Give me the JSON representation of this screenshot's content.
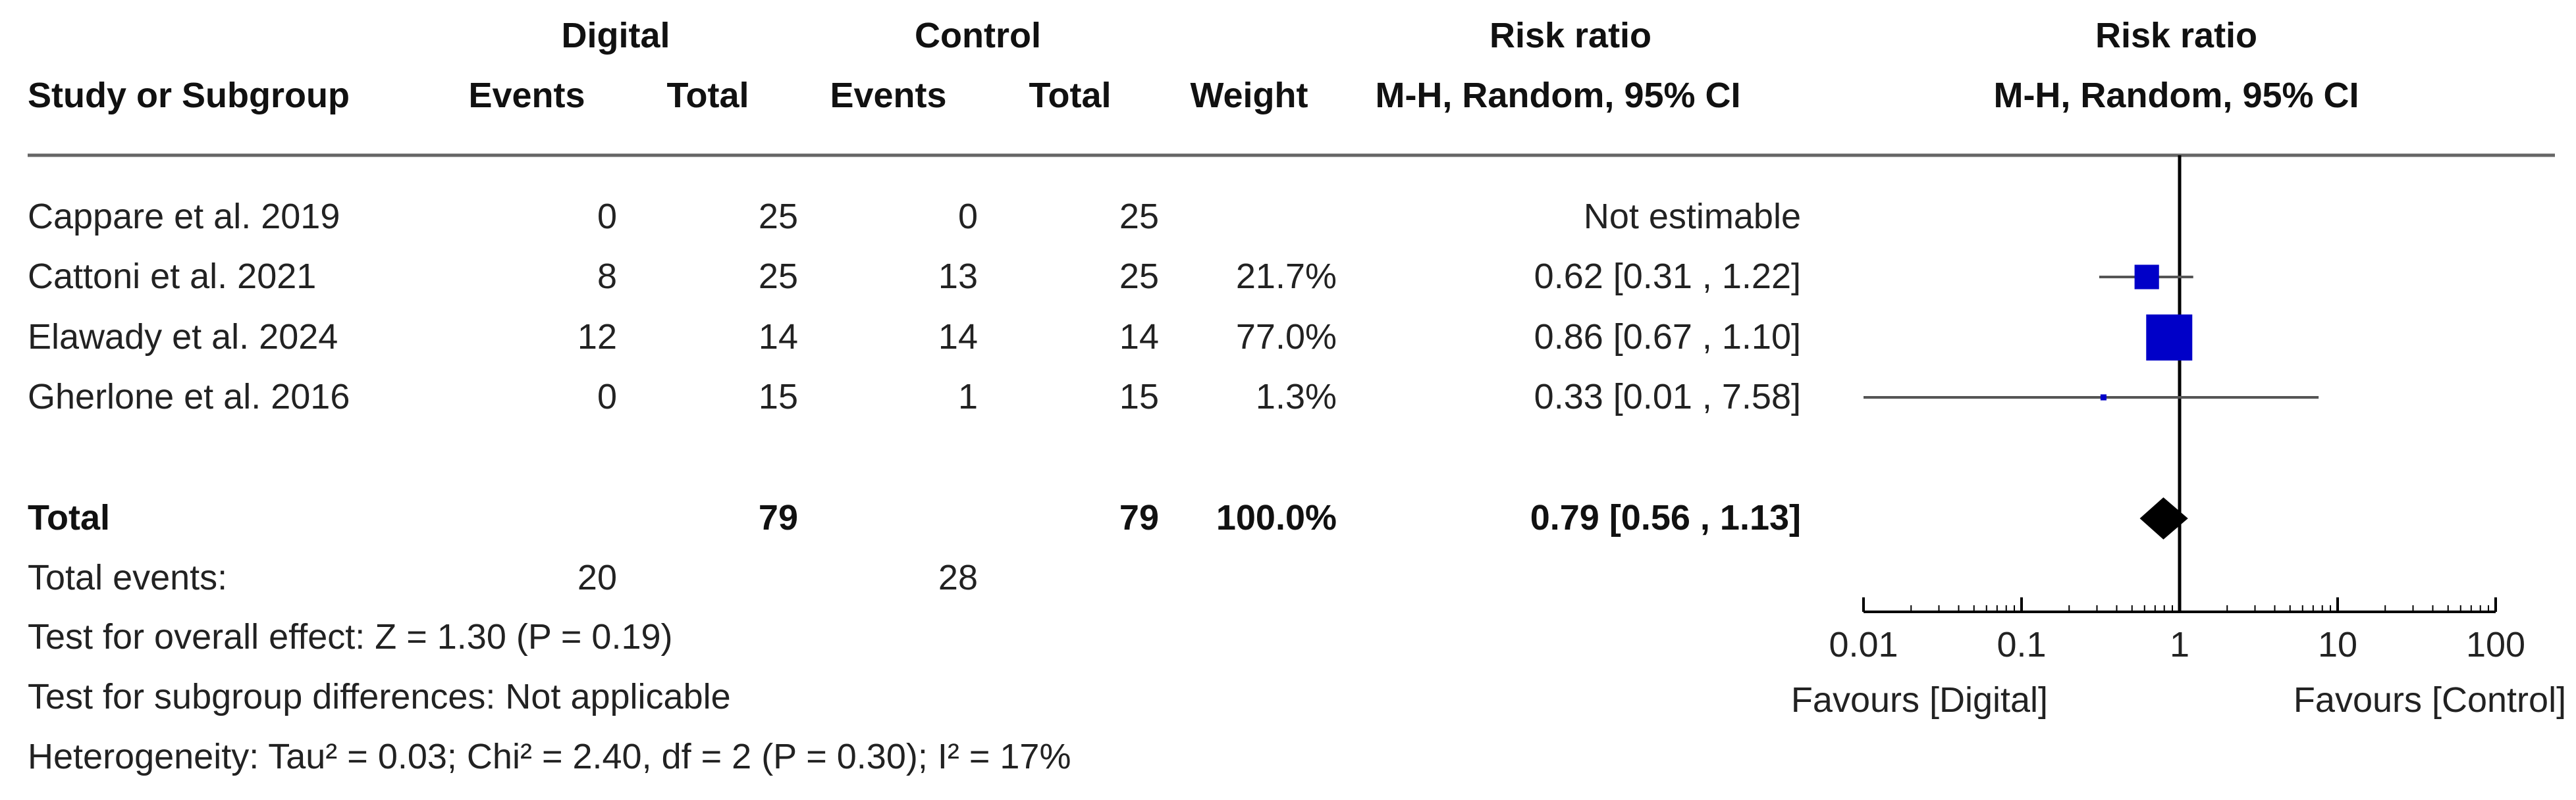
{
  "header": {
    "group1": "Digital",
    "group2": "Control",
    "rr_text_header": "Risk ratio",
    "rr_plot_header": "Risk ratio",
    "study_col": "Study or Subgroup",
    "events1": "Events",
    "total1": "Total",
    "events2": "Events",
    "total2": "Total",
    "weight": "Weight",
    "method_text": "M-H, Random, 95% CI",
    "method_plot": "M-H, Random, 95% CI"
  },
  "rows": [
    {
      "study": "Cappare et al. 2019",
      "e1": "0",
      "t1": "25",
      "e2": "0",
      "t2": "25",
      "weight": "",
      "rr_text": "Not estimable"
    },
    {
      "study": "Cattoni et al. 2021",
      "e1": "8",
      "t1": "25",
      "e2": "13",
      "t2": "25",
      "weight": "21.7%",
      "rr_text": "0.62 [0.31 , 1.22]"
    },
    {
      "study": "Elawady et al. 2024",
      "e1": "12",
      "t1": "14",
      "e2": "14",
      "t2": "14",
      "weight": "77.0%",
      "rr_text": "0.86 [0.67 , 1.10]"
    },
    {
      "study": "Gherlone et al. 2016",
      "e1": "0",
      "t1": "15",
      "e2": "1",
      "t2": "15",
      "weight": "1.3%",
      "rr_text": "0.33 [0.01 , 7.58]"
    }
  ],
  "total": {
    "label": "Total",
    "t1": "79",
    "t2": "79",
    "weight": "100.0%",
    "rr_text": "0.79 [0.56 , 1.13]"
  },
  "total_events": {
    "label": "Total events:",
    "e1": "20",
    "e2": "28"
  },
  "footnotes": [
    "Test for overall effect: Z = 1.30 (P = 0.19)",
    "Test for subgroup differences: Not applicable",
    "Heterogeneity: Tau² = 0.03; Chi² = 2.40, df = 2 (P = 0.30); I² = 17%"
  ],
  "axis": {
    "favours_left": "Favours [Digital]",
    "favours_right": "Favours [Control]"
  },
  "colors": {
    "marker": "#0000c8",
    "diamond": "#000000",
    "line": "#555555"
  },
  "chart_data": {
    "type": "scatter",
    "scale": "log",
    "xlim": [
      0.01,
      100
    ],
    "ticks": [
      0.01,
      0.1,
      1,
      10,
      100
    ],
    "tick_labels": [
      "0.01",
      "0.1",
      "1",
      "10",
      "100"
    ],
    "reference_line": 1,
    "points": [
      {
        "study": "Cattoni et al. 2021",
        "rr": 0.62,
        "lo": 0.31,
        "hi": 1.22,
        "weight": 21.7
      },
      {
        "study": "Elawady et al. 2024",
        "rr": 0.86,
        "lo": 0.67,
        "hi": 1.1,
        "weight": 77.0
      },
      {
        "study": "Gherlone et al. 2016",
        "rr": 0.33,
        "lo": 0.01,
        "hi": 7.58,
        "weight": 1.3
      }
    ],
    "pooled": {
      "rr": 0.79,
      "lo": 0.56,
      "hi": 1.13
    }
  }
}
